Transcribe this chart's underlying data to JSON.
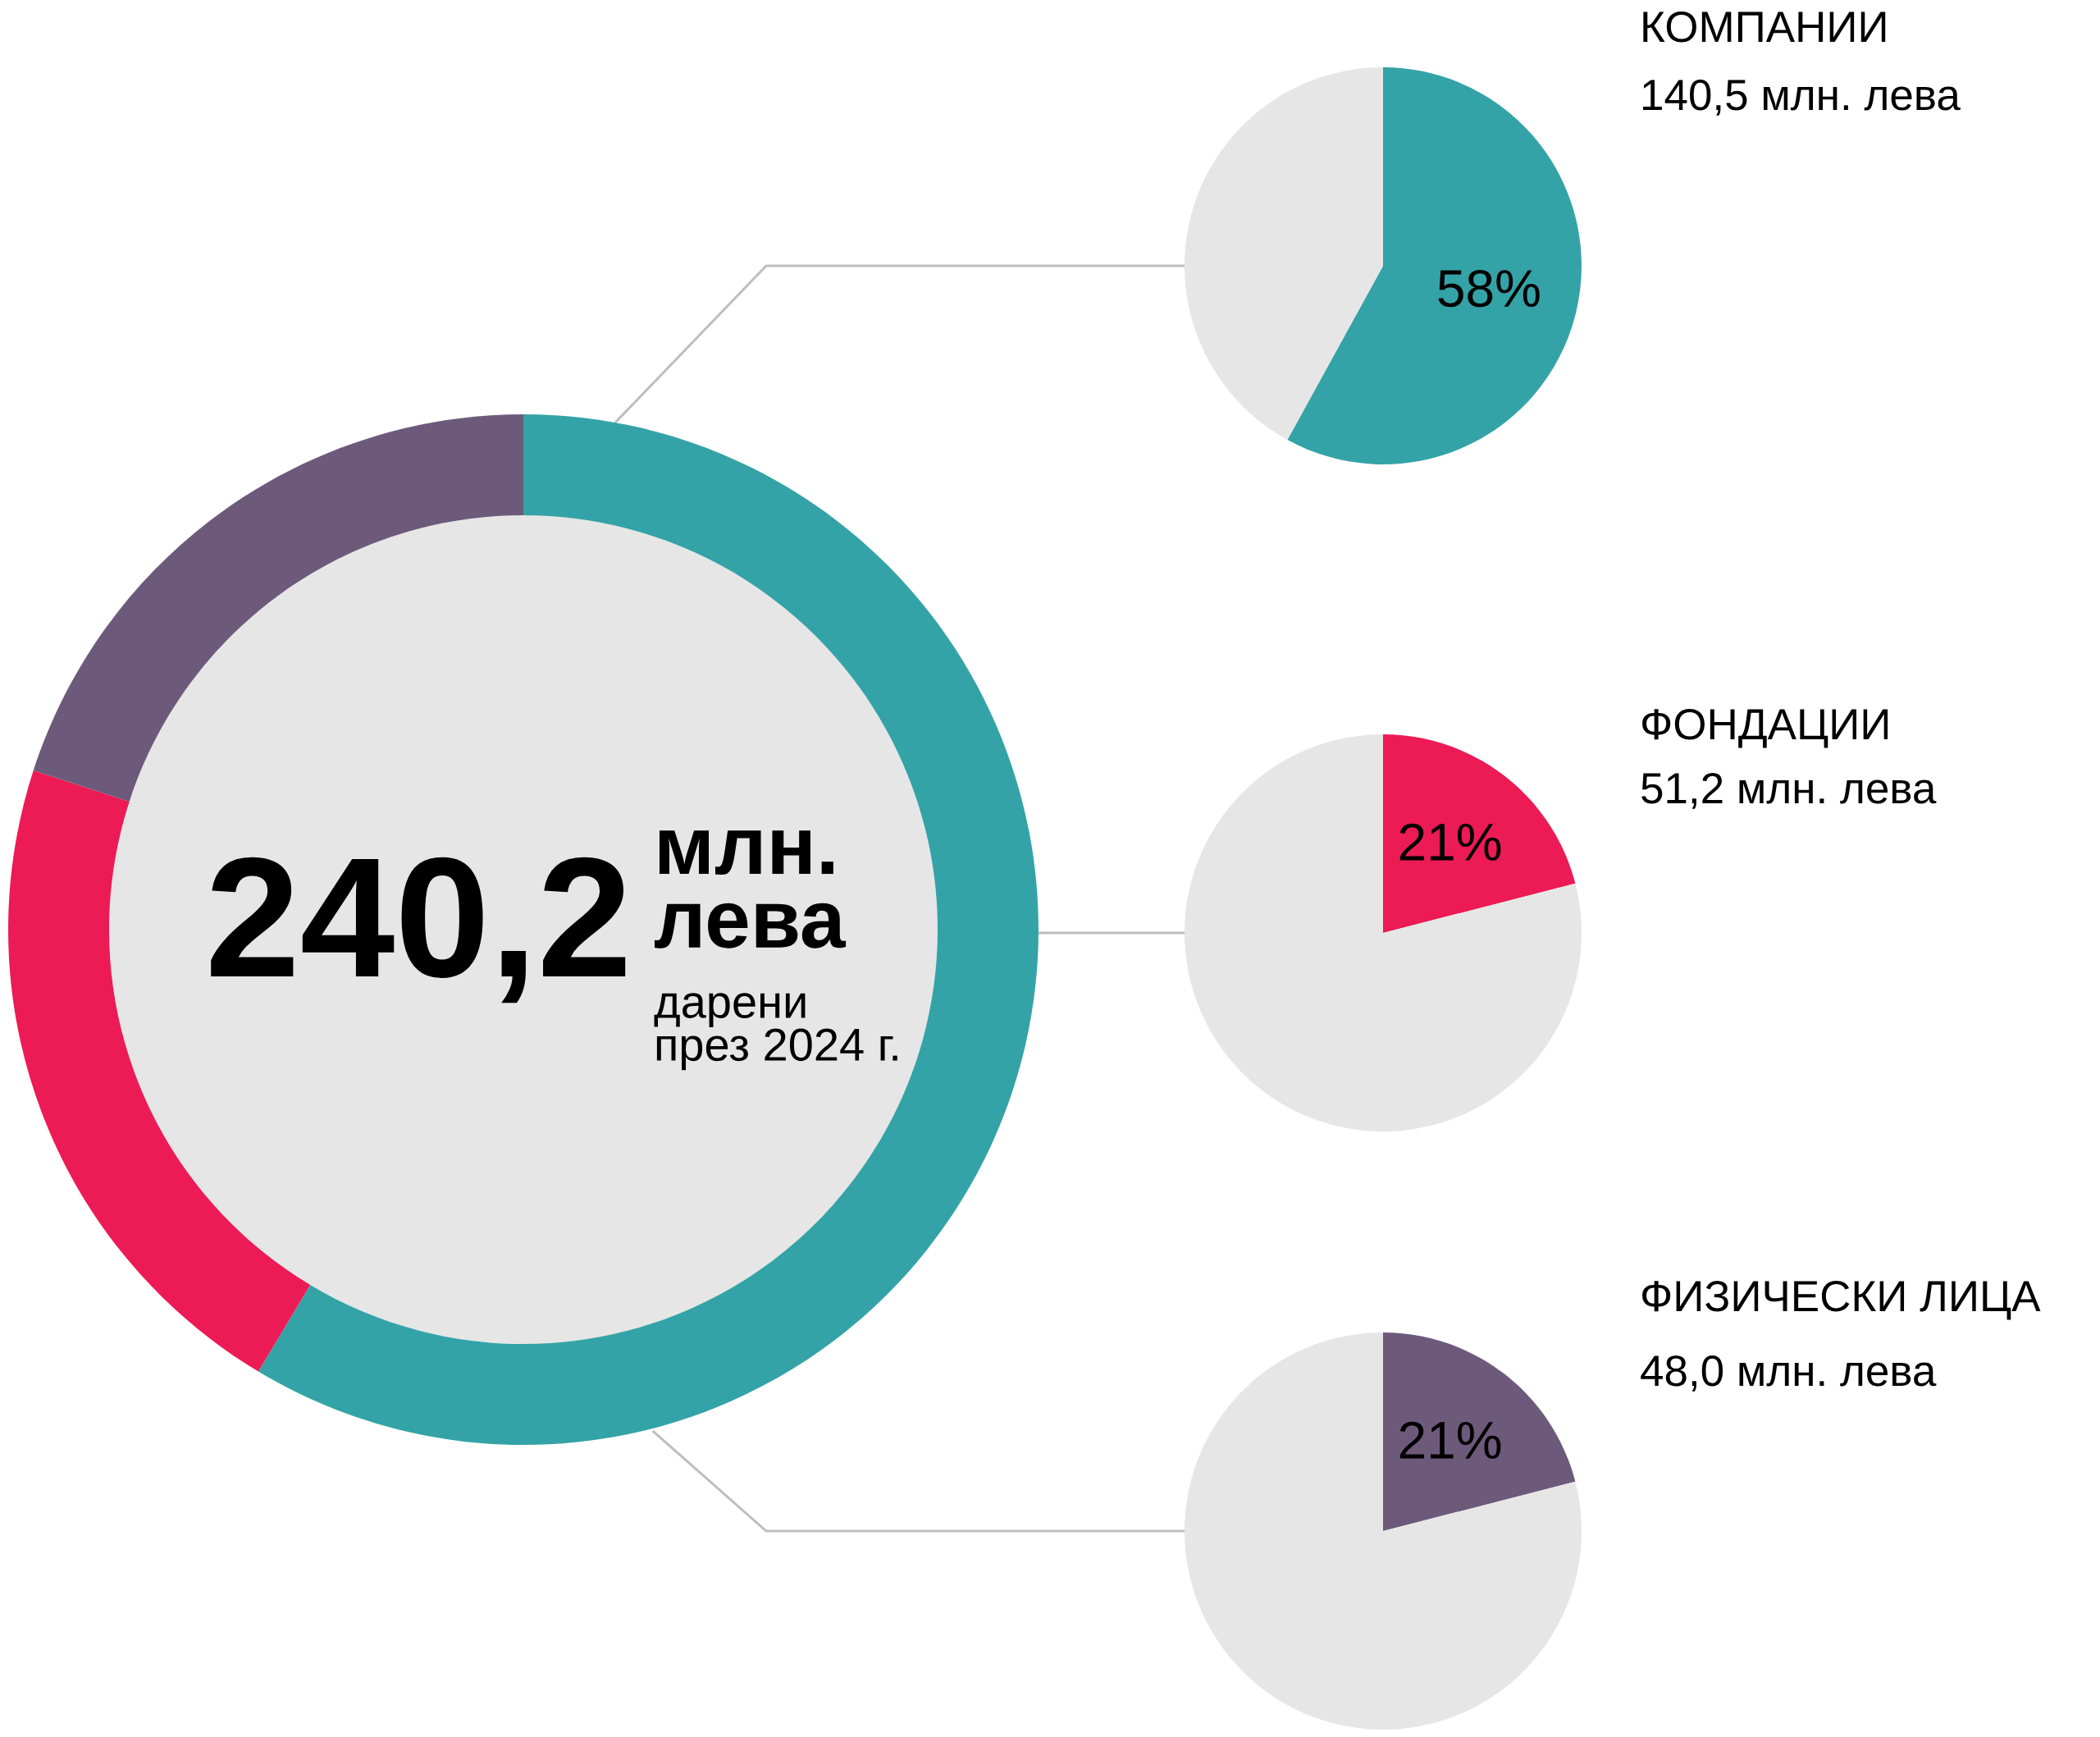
{
  "chart_data": [
    {
      "type": "donut",
      "title": "240,2",
      "subtitle": "млн. лева",
      "annotations": [
        "дарени през 2024 г."
      ],
      "categories": [
        null,
        null,
        null
      ],
      "values": [
        58.6,
        21.4,
        20.0
      ],
      "colors": [
        "#34a3a7",
        "#ec1a55",
        "#6d5a7b"
      ]
    },
    {
      "type": "pie",
      "title": "КОМПАНИИ",
      "subtitle": "140,5 млн. лева",
      "categories": [
        null,
        null
      ],
      "values": [
        58,
        42
      ],
      "colors": [
        "#34a3a7",
        "#e6e6e6"
      ],
      "value_labels": [
        "58%",
        null
      ]
    },
    {
      "type": "pie",
      "title": "ФОНДАЦИИ",
      "subtitle": "51,2 млн. лева",
      "categories": [
        null,
        null
      ],
      "values": [
        21,
        79
      ],
      "colors": [
        "#ec1a55",
        "#e6e6e6"
      ],
      "value_labels": [
        "21%",
        null
      ]
    },
    {
      "type": "pie",
      "title": "ФИЗИЧЕСКИ ЛИЦА",
      "subtitle": "48,0 млн. лева",
      "categories": [
        null,
        null
      ],
      "values": [
        21,
        79
      ],
      "colors": [
        "#6d5a7b",
        "#e6e6e6"
      ],
      "value_labels": [
        "21%",
        null
      ]
    }
  ]
}
